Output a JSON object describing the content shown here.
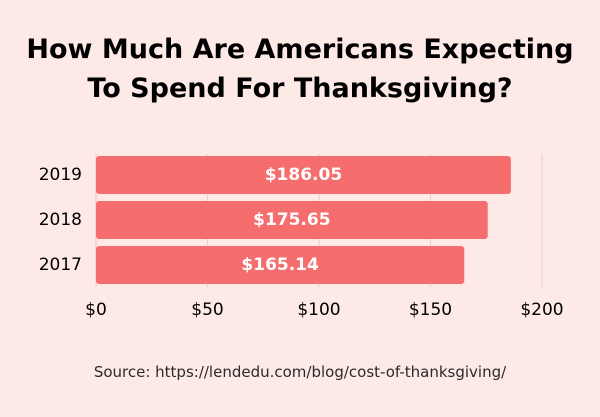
{
  "title_lines": [
    "How Much Are Americans Expecting",
    "To Spend For Thanksgiving?"
  ],
  "source": "Source: https://lendedu.com/blog/cost-of-thanksgiving/",
  "colors": {
    "background": "#fde9e5",
    "bar": "#f66d6e",
    "bar_label": "#ffffff",
    "grid": "#f3c8c2",
    "text": "#000000"
  },
  "chart_data": {
    "type": "bar",
    "orientation": "horizontal",
    "categories": [
      "2019",
      "2018",
      "2017"
    ],
    "values": [
      186.05,
      175.65,
      165.14
    ],
    "value_labels": [
      "$186.05",
      "$175.65",
      "$165.14"
    ],
    "xlim": [
      0,
      200
    ],
    "xticks": [
      0,
      50,
      100,
      150,
      200
    ],
    "xtick_labels": [
      "$0",
      "$50",
      "$100",
      "$150",
      "$200"
    ],
    "grid": true
  }
}
